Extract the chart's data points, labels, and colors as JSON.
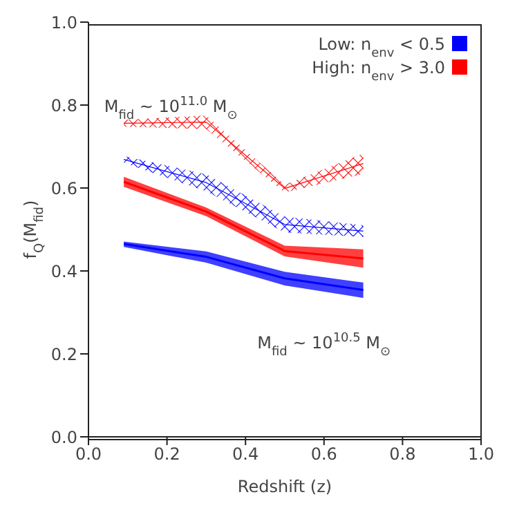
{
  "chart_data": {
    "type": "line",
    "xlabel": "Redshift (z)",
    "ylabel": "f$_{Q}$(M$_{fid}$)",
    "x": [
      0.09,
      0.3,
      0.5,
      0.7
    ],
    "series": [
      {
        "name": "Low: n$_{env}$ < 0.5",
        "color": "#0000ff",
        "values": [
          0.465,
          0.434,
          0.382,
          0.354
        ],
        "lower": [
          0.458,
          0.42,
          0.365,
          0.335
        ],
        "upper": [
          0.471,
          0.447,
          0.398,
          0.372
        ]
      },
      {
        "name": "High: n$_{env}$ > 3.0",
        "color": "#ff0000",
        "values": [
          0.615,
          0.543,
          0.448,
          0.43
        ],
        "lower": [
          0.603,
          0.532,
          0.435,
          0.408
        ],
        "upper": [
          0.627,
          0.553,
          0.461,
          0.452
        ]
      },
      {
        "color": "#0000ff",
        "values": [
          0.669,
          0.613,
          0.512,
          0.496
        ],
        "lower": [
          0.661,
          0.592,
          0.493,
          0.482
        ],
        "upper": [
          0.677,
          0.633,
          0.531,
          0.51
        ]
      },
      {
        "color": "#ff0000",
        "values": [
          0.756,
          0.759,
          0.599,
          0.659
        ],
        "lower": [
          0.748,
          0.742,
          0.589,
          0.634
        ],
        "upper": [
          0.764,
          0.775,
          0.608,
          0.683
        ]
      }
    ],
    "annotations": [
      "M$_{fid}$ ~ 10$^{11.0}$ M$_{⊙}$",
      "M$_{fid}$ ~ 10$^{10.5}$ M$_{⊙}$"
    ],
    "xlim": [
      0,
      1
    ],
    "ylim": [
      0,
      1
    ],
    "xticks": [
      {
        "value": 0,
        "label": "0.0"
      },
      0.2,
      0.4,
      0.6,
      0.8,
      {
        "value": 1,
        "label": "1.0"
      }
    ],
    "yticks": [
      {
        "value": 0,
        "label": "0.0"
      },
      0.2,
      0.4,
      0.6,
      0.8,
      {
        "value": 1,
        "label": "1.0"
      }
    ],
    "legend": "top right",
    "grid": false
  }
}
